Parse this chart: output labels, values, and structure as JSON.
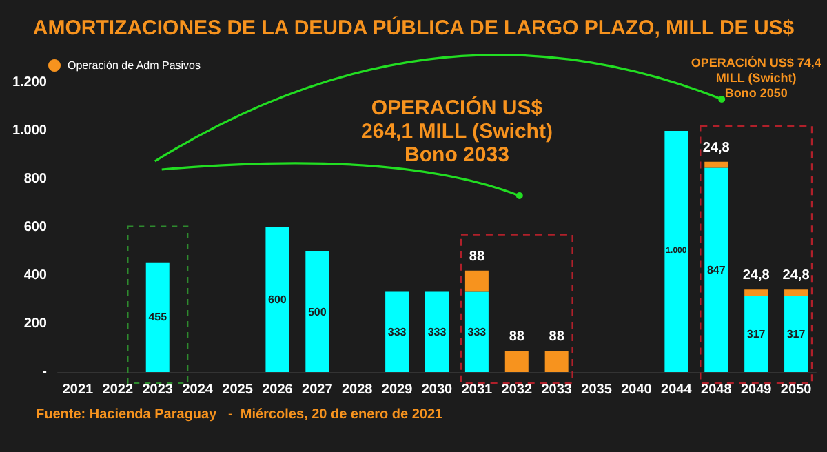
{
  "chart_data": {
    "type": "bar",
    "title": "AMORTIZACIONES DE LA DEUDA PÚBLICA DE LARGO PLAZO, MILL DE US$",
    "categories": [
      "2021",
      "2022",
      "2023",
      "2024",
      "2025",
      "2026",
      "2027",
      "2028",
      "2029",
      "2030",
      "2031",
      "2032",
      "2033",
      "2035",
      "2040",
      "2044",
      "2048",
      "2049",
      "2050"
    ],
    "series": [
      {
        "color": "#00ffff",
        "values": [
          null,
          null,
          455,
          null,
          null,
          600,
          500,
          null,
          333,
          333,
          333,
          null,
          null,
          null,
          null,
          1000,
          847,
          317,
          317
        ],
        "value_labels": [
          null,
          null,
          "455",
          null,
          null,
          "600",
          "500",
          null,
          "333",
          "333",
          "333",
          null,
          null,
          null,
          null,
          "1.000",
          "847",
          "317",
          "317"
        ]
      },
      {
        "name": "Operación de Adm Pasivos",
        "color": "#f7931e",
        "values": [
          null,
          null,
          null,
          null,
          null,
          null,
          null,
          null,
          null,
          null,
          88,
          88,
          88,
          null,
          null,
          null,
          24.8,
          24.8,
          24.8
        ],
        "value_labels": [
          null,
          null,
          null,
          null,
          null,
          null,
          null,
          null,
          null,
          null,
          "88",
          "88",
          "88",
          null,
          null,
          null,
          "24,8",
          "24,8",
          "24,8"
        ]
      }
    ],
    "stacked": true,
    "ylim": [
      0,
      1200
    ],
    "yticks": [
      {
        "value": 0,
        "label": "-"
      },
      200,
      400,
      600,
      800,
      {
        "value": 1000,
        "label": "1.000"
      },
      {
        "value": 1200,
        "label": "1.200"
      }
    ],
    "grid": false,
    "legend": "top left",
    "annotations": [
      "OPERACIÓN US$\n264,1 MILL (Swicht)\nBono 2033",
      "OPERACIÓN US$ 74,4\nMILL (Swicht)\nBono 2050",
      "Fuente: Hacienda Paraguay   -  Miércoles, 20 de enero de 2021"
    ]
  }
}
